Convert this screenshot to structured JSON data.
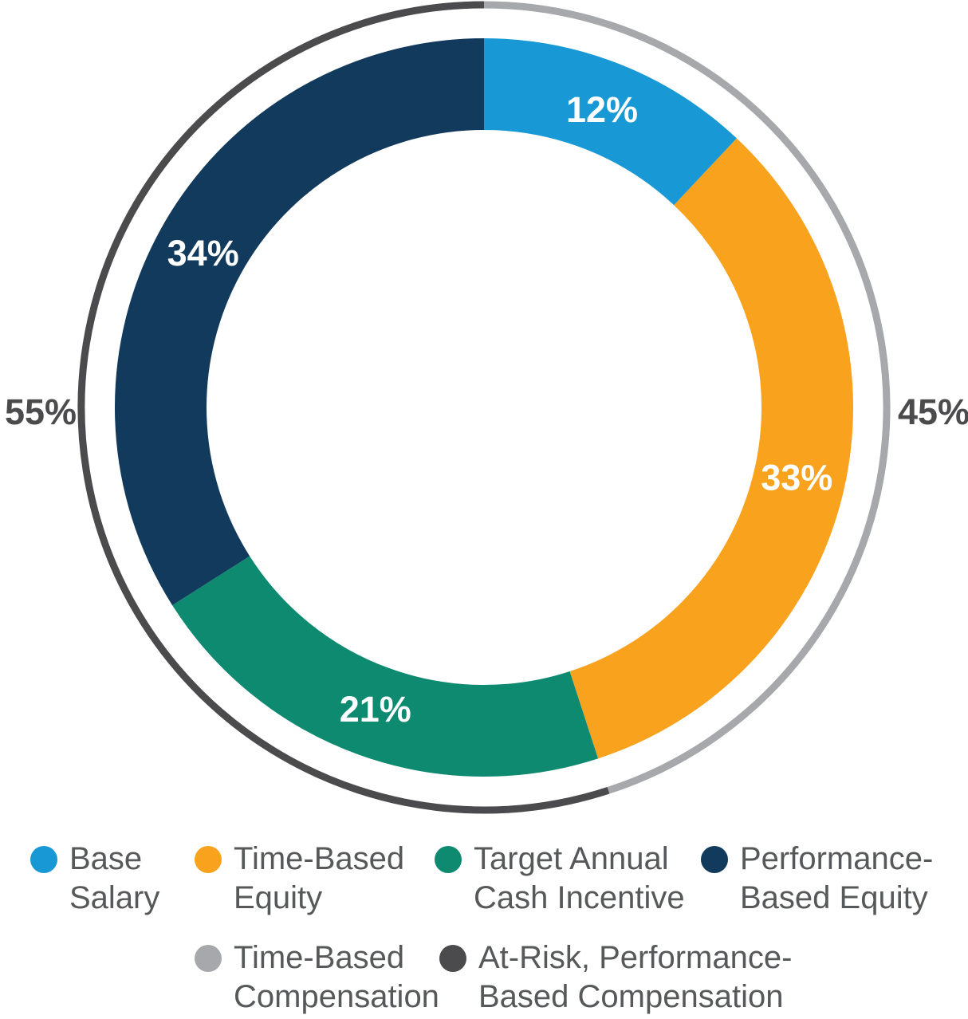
{
  "chart_data": {
    "type": "donut",
    "title": "",
    "start_at": "top",
    "direction": "clockwise",
    "legend_position": "bottom",
    "series": [
      {
        "name": "pay-mix",
        "ring": "inner",
        "segments": [
          {
            "label": "Base Salary",
            "legend_lines": [
              "Base",
              "Salary"
            ],
            "value": 12,
            "display": "12%",
            "color": "#1899d6"
          },
          {
            "label": "Time-Based Equity",
            "legend_lines": [
              "Time-Based",
              "Equity"
            ],
            "value": 33,
            "display": "33%",
            "color": "#f8a21e"
          },
          {
            "label": "Target Annual Cash Incentive",
            "legend_lines": [
              "Target Annual",
              "Cash Incentive"
            ],
            "value": 21,
            "display": "21%",
            "color": "#0e8a71"
          },
          {
            "label": "Performance-Based Equity",
            "legend_lines": [
              "Performance-",
              "Based Equity"
            ],
            "value": 34,
            "display": "34%",
            "color": "#123a5d"
          }
        ]
      },
      {
        "name": "compensation-type",
        "ring": "outer",
        "segments": [
          {
            "label": "Time-Based Compensation",
            "legend_lines": [
              "Time-Based",
              "Compensation"
            ],
            "value": 45,
            "display": "45%",
            "color": "#a6a8ab"
          },
          {
            "label": "At-Risk, Performance-Based Compensation",
            "legend_lines": [
              "At-Risk, Performance-",
              "Based Compensation"
            ],
            "value": 55,
            "display": "55%",
            "color": "#4b4b4d"
          }
        ]
      }
    ]
  },
  "colors": {
    "segment_label_text": "#ffffff",
    "side_label_text": "#4b4b4d",
    "legend_text": "#57585a",
    "background": "#ffffff"
  }
}
